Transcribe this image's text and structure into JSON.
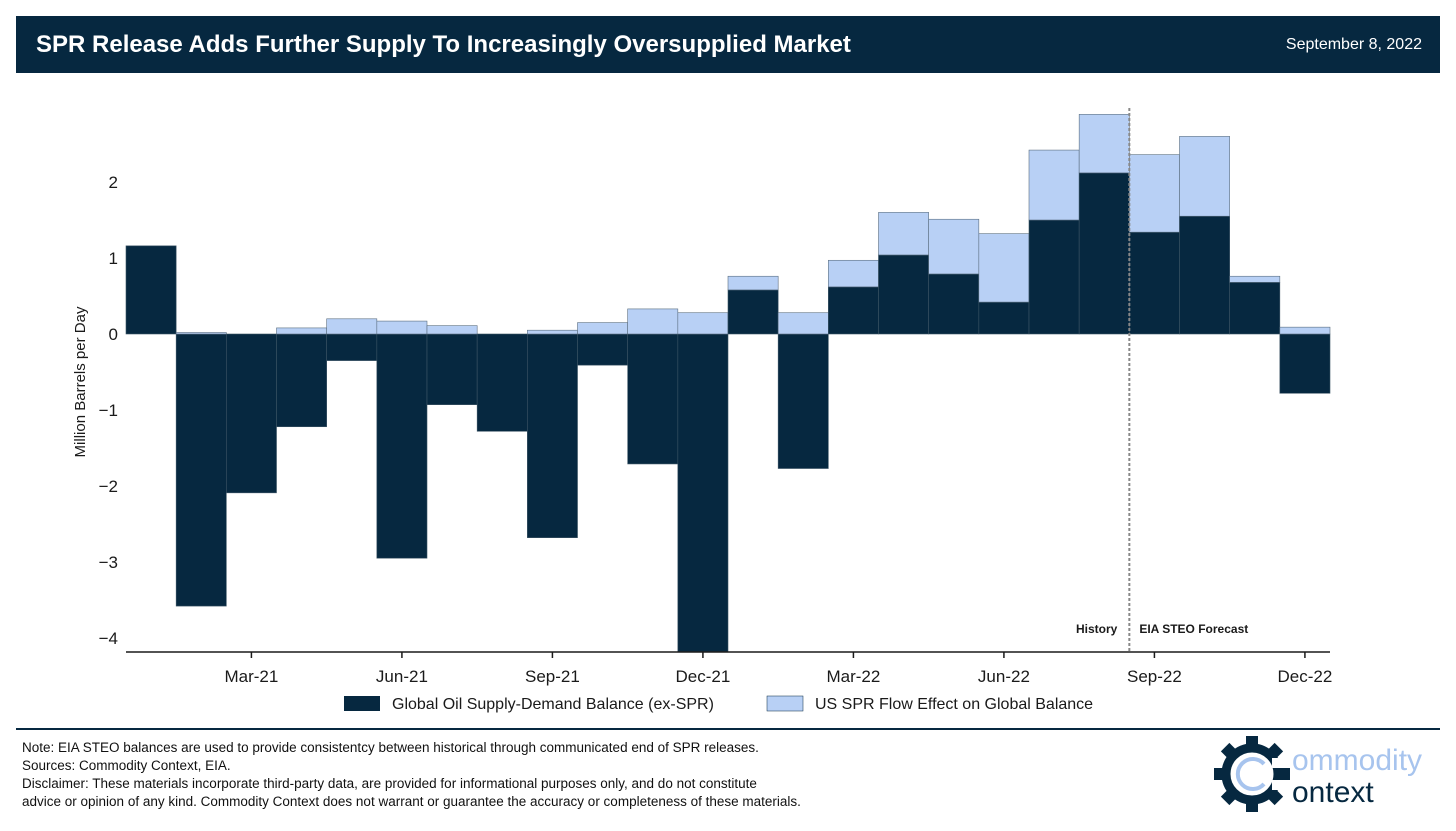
{
  "header": {
    "title": "SPR Release Adds Further Supply To Increasingly Oversupplied Market",
    "date": "September 8, 2022"
  },
  "chart_data": {
    "type": "bar",
    "stacked": true,
    "ylabel": "Million Barrels per Day",
    "xlabel": "",
    "ylim": [
      -4.2,
      3.0
    ],
    "yticks": [
      -4,
      -3,
      -2,
      -1,
      0,
      1,
      2
    ],
    "ytick_labels": [
      "−4",
      "−3",
      "−2",
      "−1",
      "0",
      "1",
      "2"
    ],
    "categories": [
      "Jan-21",
      "Feb-21",
      "Mar-21",
      "Apr-21",
      "May-21",
      "Jun-21",
      "Jul-21",
      "Aug-21",
      "Sep-21",
      "Oct-21",
      "Nov-21",
      "Dec-21",
      "Jan-22",
      "Feb-22",
      "Mar-22",
      "Apr-22",
      "May-22",
      "Jun-22",
      "Jul-22",
      "Aug-22",
      "Sep-22",
      "Oct-22",
      "Nov-22",
      "Dec-22"
    ],
    "xtick_labels": [
      {
        "category": "Mar-21",
        "label": "Mar-21"
      },
      {
        "category": "Jun-21",
        "label": "Jun-21"
      },
      {
        "category": "Sep-21",
        "label": "Sep-21"
      },
      {
        "category": "Dec-21",
        "label": "Dec-21"
      },
      {
        "category": "Mar-22",
        "label": "Mar-22"
      },
      {
        "category": "Jun-22",
        "label": "Jun-22"
      },
      {
        "category": "Sep-22",
        "label": "Sep-22"
      },
      {
        "category": "Dec-22",
        "label": "Dec-22"
      }
    ],
    "series": [
      {
        "name": "Global Oil Supply-Demand Balance (ex-SPR)",
        "color": "#062840",
        "values": [
          1.16,
          -3.58,
          -2.09,
          -1.22,
          -0.35,
          -2.95,
          -0.93,
          -1.28,
          -2.68,
          -0.41,
          -1.71,
          -4.18,
          0.58,
          -1.77,
          0.62,
          1.04,
          0.79,
          0.42,
          1.5,
          2.12,
          1.34,
          1.55,
          0.68,
          -0.78
        ]
      },
      {
        "name": "US SPR Flow Effect on Global Balance",
        "color": "#b8d0f5",
        "values": [
          0.0,
          0.02,
          0.0,
          0.08,
          0.2,
          0.17,
          0.11,
          0.0,
          0.05,
          0.15,
          0.33,
          0.28,
          0.18,
          0.28,
          0.35,
          0.56,
          0.72,
          0.9,
          0.92,
          0.77,
          1.02,
          1.05,
          0.08,
          0.09
        ]
      }
    ],
    "annotations": {
      "divider_after": "Aug-22",
      "history_label": "History",
      "forecast_label": "EIA STEO Forecast"
    },
    "legend": "bottom-center",
    "grid": false
  },
  "footer": {
    "note": "Note: EIA STEO balances are used to provide consistentcy between historical through communicated end of SPR releases.",
    "sources": "Sources: Commodity Context, EIA.",
    "disclaimer_1": "Disclaimer: These materials incorporate third-party data, are provided for informational purposes only, and do not constitute",
    "disclaimer_2": "advice or opinion of any kind. Commodity Context does not warrant or guarantee the accuracy or completeness of these materials."
  },
  "logo": {
    "line1": "ommodity",
    "line2": "ontext",
    "icon": "gear-c-icon",
    "colors": {
      "dark": "#062840",
      "light": "#a7c4ee"
    }
  }
}
